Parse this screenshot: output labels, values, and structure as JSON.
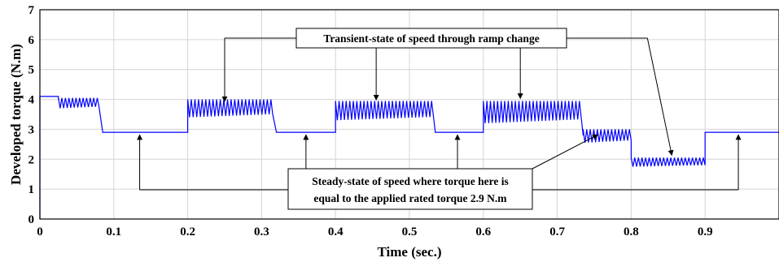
{
  "chart_data": {
    "type": "line",
    "xlabel": "Time (sec.)",
    "ylabel": "Developed torque (N.m)",
    "xlim": [
      0,
      1
    ],
    "ylim": [
      0,
      7
    ],
    "grid": true,
    "x_ticks": [
      "0",
      "0.1",
      "0.2",
      "0.3",
      "0.4",
      "0.5",
      "0.6",
      "0.7",
      "0.8",
      "0.9"
    ],
    "y_ticks": [
      "0",
      "1",
      "2",
      "3",
      "4",
      "5",
      "6",
      "7"
    ],
    "series": [
      {
        "color": "#0000ff",
        "segments": [
          {
            "x0": 0.0,
            "x1": 0.025,
            "level": 4.1,
            "ripple_low": 4.1,
            "ripple_high": 4.1
          },
          {
            "x0": 0.025,
            "x1": 0.08,
            "level": 4.0,
            "ripple_low": 3.7,
            "ripple_high": 4.05
          },
          {
            "x0": 0.085,
            "x1": 0.2,
            "level": 2.9,
            "ripple_low": 2.88,
            "ripple_high": 2.95
          },
          {
            "x0": 0.2,
            "x1": 0.315,
            "level": 3.7,
            "ripple_low": 3.4,
            "ripple_high": 4.0
          },
          {
            "x0": 0.32,
            "x1": 0.4,
            "level": 2.9,
            "ripple_low": 2.88,
            "ripple_high": 2.95
          },
          {
            "x0": 0.4,
            "x1": 0.53,
            "level": 3.6,
            "ripple_low": 3.3,
            "ripple_high": 3.95
          },
          {
            "x0": 0.535,
            "x1": 0.6,
            "level": 2.9,
            "ripple_low": 2.88,
            "ripple_high": 2.95
          },
          {
            "x0": 0.6,
            "x1": 0.73,
            "level": 3.6,
            "ripple_low": 3.2,
            "ripple_high": 3.95
          },
          {
            "x0": 0.735,
            "x1": 0.8,
            "level": 2.8,
            "ripple_low": 2.55,
            "ripple_high": 3.0
          },
          {
            "x0": 0.8,
            "x1": 0.9,
            "level": 2.0,
            "ripple_low": 1.75,
            "ripple_high": 2.05
          },
          {
            "x0": 0.9,
            "x1": 1.0,
            "level": 2.9,
            "ripple_low": 2.88,
            "ripple_high": 2.95
          }
        ]
      }
    ],
    "annotations": [
      {
        "text": "Transient-state of speed through ramp change",
        "arrow_targets": [
          [
            0.25,
            3.85
          ],
          [
            0.455,
            3.9
          ],
          [
            0.65,
            3.95
          ],
          [
            0.855,
            2.05
          ]
        ]
      },
      {
        "text_lines": [
          "Steady-state of speed where torque here is",
          "equal to the applied rated torque 2.9 N.m"
        ],
        "arrow_targets": [
          [
            0.135,
            2.9
          ],
          [
            0.36,
            2.9
          ],
          [
            0.565,
            2.9
          ],
          [
            0.755,
            2.9
          ],
          [
            0.945,
            2.9
          ]
        ]
      }
    ]
  }
}
